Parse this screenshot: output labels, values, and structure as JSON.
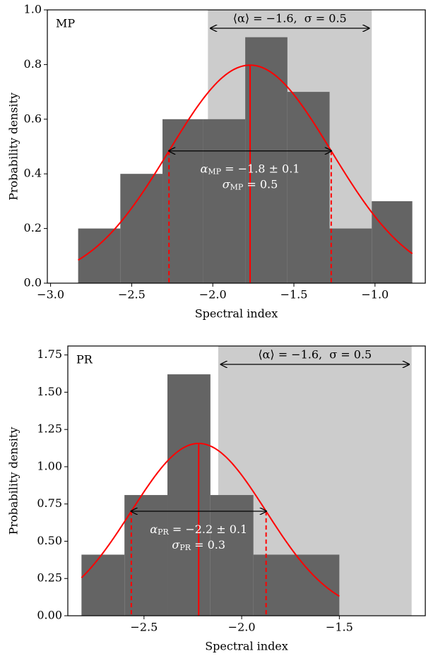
{
  "chart_data": [
    {
      "type": "histogram",
      "label": "MP",
      "bins": [
        -2.83,
        -2.57,
        -2.31,
        -2.06,
        -1.8,
        -1.54,
        -1.28,
        -1.02,
        -0.77
      ],
      "values": [
        0.2,
        0.4,
        0.6,
        0.6,
        0.9,
        0.7,
        0.2,
        0.3
      ],
      "color": "#646464",
      "fit": {
        "mean": -1.77,
        "sigma": 0.5,
        "color": "#ff0000",
        "annotation": [
          {
            "symbol": "α",
            "subscript": "MP",
            "rest": " = −1.8 ± 0.1"
          },
          {
            "symbol": "σ",
            "subscript": "MP",
            "rest": " = 0.5"
          }
        ]
      },
      "band": {
        "range": [
          -2.03,
          -1.02
        ],
        "color": "#cccccc",
        "annotation": "⟨α⟩ = −1.6,  σ = 0.5"
      },
      "x_label": "Spectral index",
      "y_label": "Probability density",
      "xlim": [
        -3.02,
        -0.69
      ],
      "ylim": [
        0,
        1.0
      ],
      "xticks": [
        {
          "value": -3.0,
          "label": "−3.0"
        },
        {
          "value": -2.5,
          "label": "−2.5"
        },
        {
          "value": -2.0,
          "label": "−2.0"
        },
        {
          "value": -1.5,
          "label": "−1.5"
        },
        {
          "value": -1.0,
          "label": "−1.0"
        }
      ],
      "yticks": [
        {
          "value": 0,
          "label": "0.0"
        },
        0.2,
        0.4,
        0.6,
        0.8,
        {
          "value": 1,
          "label": "1.0"
        }
      ]
    },
    {
      "type": "histogram",
      "label": "PR",
      "bins": [
        -2.82,
        -2.6,
        -2.38,
        -2.16,
        -1.94,
        -1.72,
        -1.5
      ],
      "values": [
        0.41,
        0.81,
        1.62,
        0.81,
        0.41,
        0.41
      ],
      "color": "#646464",
      "fit": {
        "mean": -2.22,
        "sigma": 0.345,
        "color": "#ff0000",
        "annotation": [
          {
            "symbol": "α",
            "subscript": "PR",
            "rest": " = −2.2 ± 0.1"
          },
          {
            "symbol": "σ",
            "subscript": "PR",
            "rest": " = 0.3"
          }
        ]
      },
      "band": {
        "range": [
          -2.12,
          -1.13
        ],
        "color": "#cccccc",
        "annotation": "⟨α⟩ = −1.6,  σ = 0.5"
      },
      "x_label": "Spectral index",
      "y_label": "Probability density",
      "xlim": [
        -2.89,
        -1.06
      ],
      "ylim": [
        0,
        1.81
      ],
      "xticks": [
        {
          "value": -2.5,
          "label": "−2.5"
        },
        {
          "value": -2.0,
          "label": "−2.0"
        },
        {
          "value": -1.5,
          "label": "−1.5"
        }
      ],
      "yticks": [
        {
          "value": 0,
          "label": "0.00"
        },
        0.25,
        {
          "value": 0.5,
          "label": "0.50"
        },
        {
          "value": 0.75,
          "label": "0.75"
        },
        {
          "value": 1,
          "label": "1.00"
        },
        1.25,
        {
          "value": 1.5,
          "label": "1.50"
        },
        1.75
      ]
    }
  ]
}
